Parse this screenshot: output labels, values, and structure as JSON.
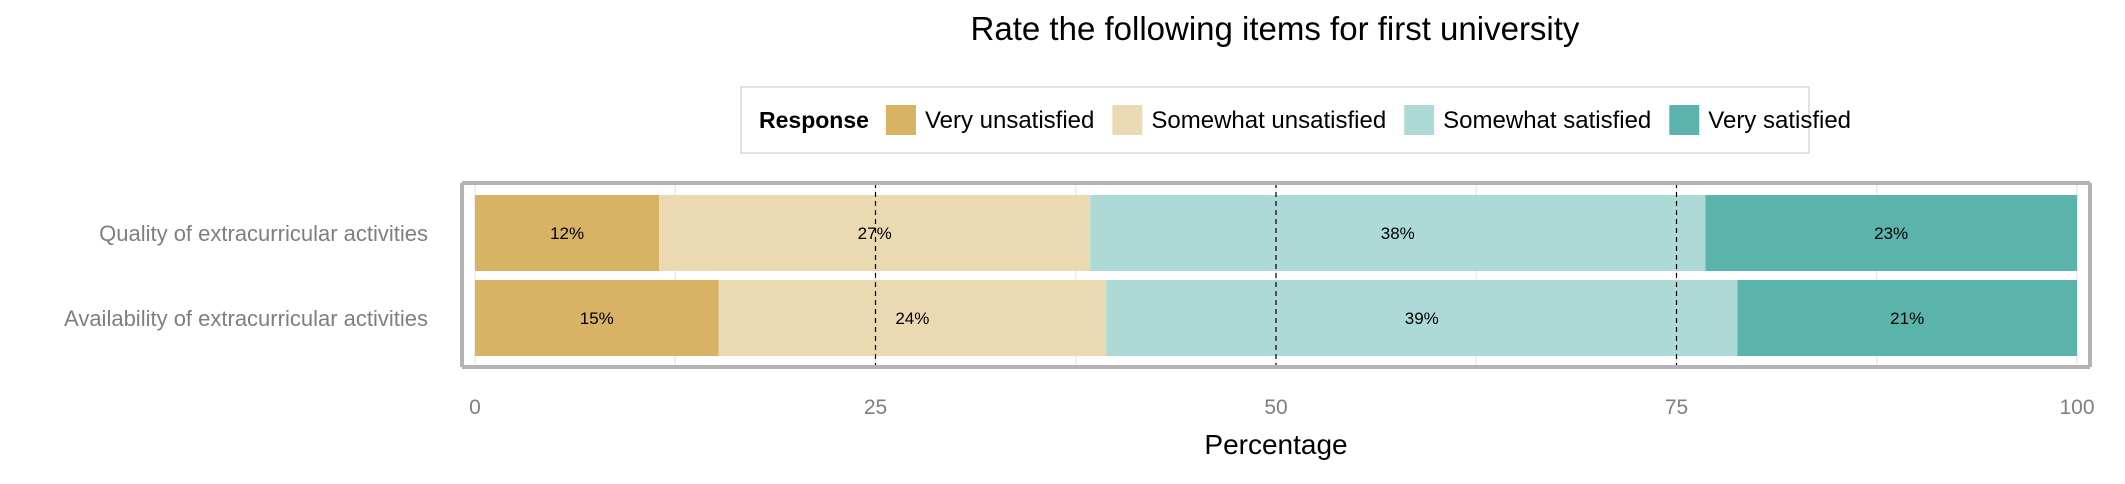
{
  "chart_data": {
    "type": "bar",
    "orientation": "horizontal",
    "stacked": true,
    "title": "Rate the following items for first university",
    "xlabel": "Percentage",
    "ylabel": "",
    "xlim": [
      0,
      100
    ],
    "xticks": [
      "0",
      "25",
      "50",
      "75",
      "100"
    ],
    "grid": true,
    "legend": {
      "title": "Response",
      "position": "top"
    },
    "categories": [
      "Quality of extracurricular activities",
      "Availability of extracurricular activities"
    ],
    "series": [
      {
        "name": "Very unsatisfied",
        "color": "#d8b365",
        "values": [
          11.5,
          15.2
        ],
        "labels": [
          "12%",
          "15%"
        ]
      },
      {
        "name": "Somewhat unsatisfied",
        "color": "#ebd9b2",
        "values": [
          26.9,
          24.2
        ],
        "labels": [
          "27%",
          "24%"
        ]
      },
      {
        "name": "Somewhat satisfied",
        "color": "#add9d7",
        "values": [
          38.4,
          39.4
        ],
        "labels": [
          "38%",
          "39%"
        ]
      },
      {
        "name": "Very satisfied",
        "color": "#5ab4ac",
        "values": [
          23.2,
          21.2
        ],
        "labels": [
          "23%",
          "21%"
        ]
      }
    ]
  }
}
